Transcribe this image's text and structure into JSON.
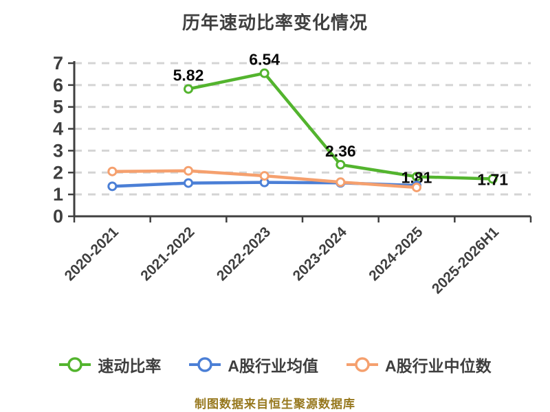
{
  "title": "历年速动比率变化情况",
  "footer": "制图数据来自恒生聚源数据库",
  "colors": {
    "title_text": "#3f3f3f",
    "axis": "#3f3f3f",
    "grid": "#d4d4d4",
    "data_label": "#0a0a0a",
    "footer_text": "#97781e",
    "background": "#ffffff"
  },
  "chart_data": {
    "type": "line",
    "title": "历年速动比率变化情况",
    "categories": [
      "2020-2021",
      "2021-2022",
      "2022-2023",
      "2023-2024",
      "2024-2025",
      "2025-2026H1"
    ],
    "series": [
      {
        "name": "速动比率",
        "color": "#53b42e",
        "values": [
          null,
          5.82,
          6.54,
          2.36,
          1.81,
          1.71
        ],
        "show_labels": true
      },
      {
        "name": "A股行业均值",
        "color": "#4b7fd6",
        "values": [
          1.37,
          1.52,
          1.55,
          1.53,
          1.41,
          null
        ],
        "show_labels": false
      },
      {
        "name": "A股行业中位数",
        "color": "#f5a06e",
        "values": [
          2.05,
          2.08,
          1.85,
          1.56,
          1.32,
          null
        ],
        "show_labels": false
      }
    ],
    "labeled_values": [
      "5.82",
      "6.54",
      "2.36",
      "1.81",
      "1.71"
    ],
    "xlabel": "",
    "ylabel": "",
    "ylim": [
      0,
      7
    ],
    "yticks": [
      0,
      1,
      2,
      3,
      4,
      5,
      6,
      7
    ],
    "x_tick_rotation": -45,
    "grid": "horizontal-dashed",
    "legend_position": "bottom",
    "marker": "circle-white-fill"
  }
}
